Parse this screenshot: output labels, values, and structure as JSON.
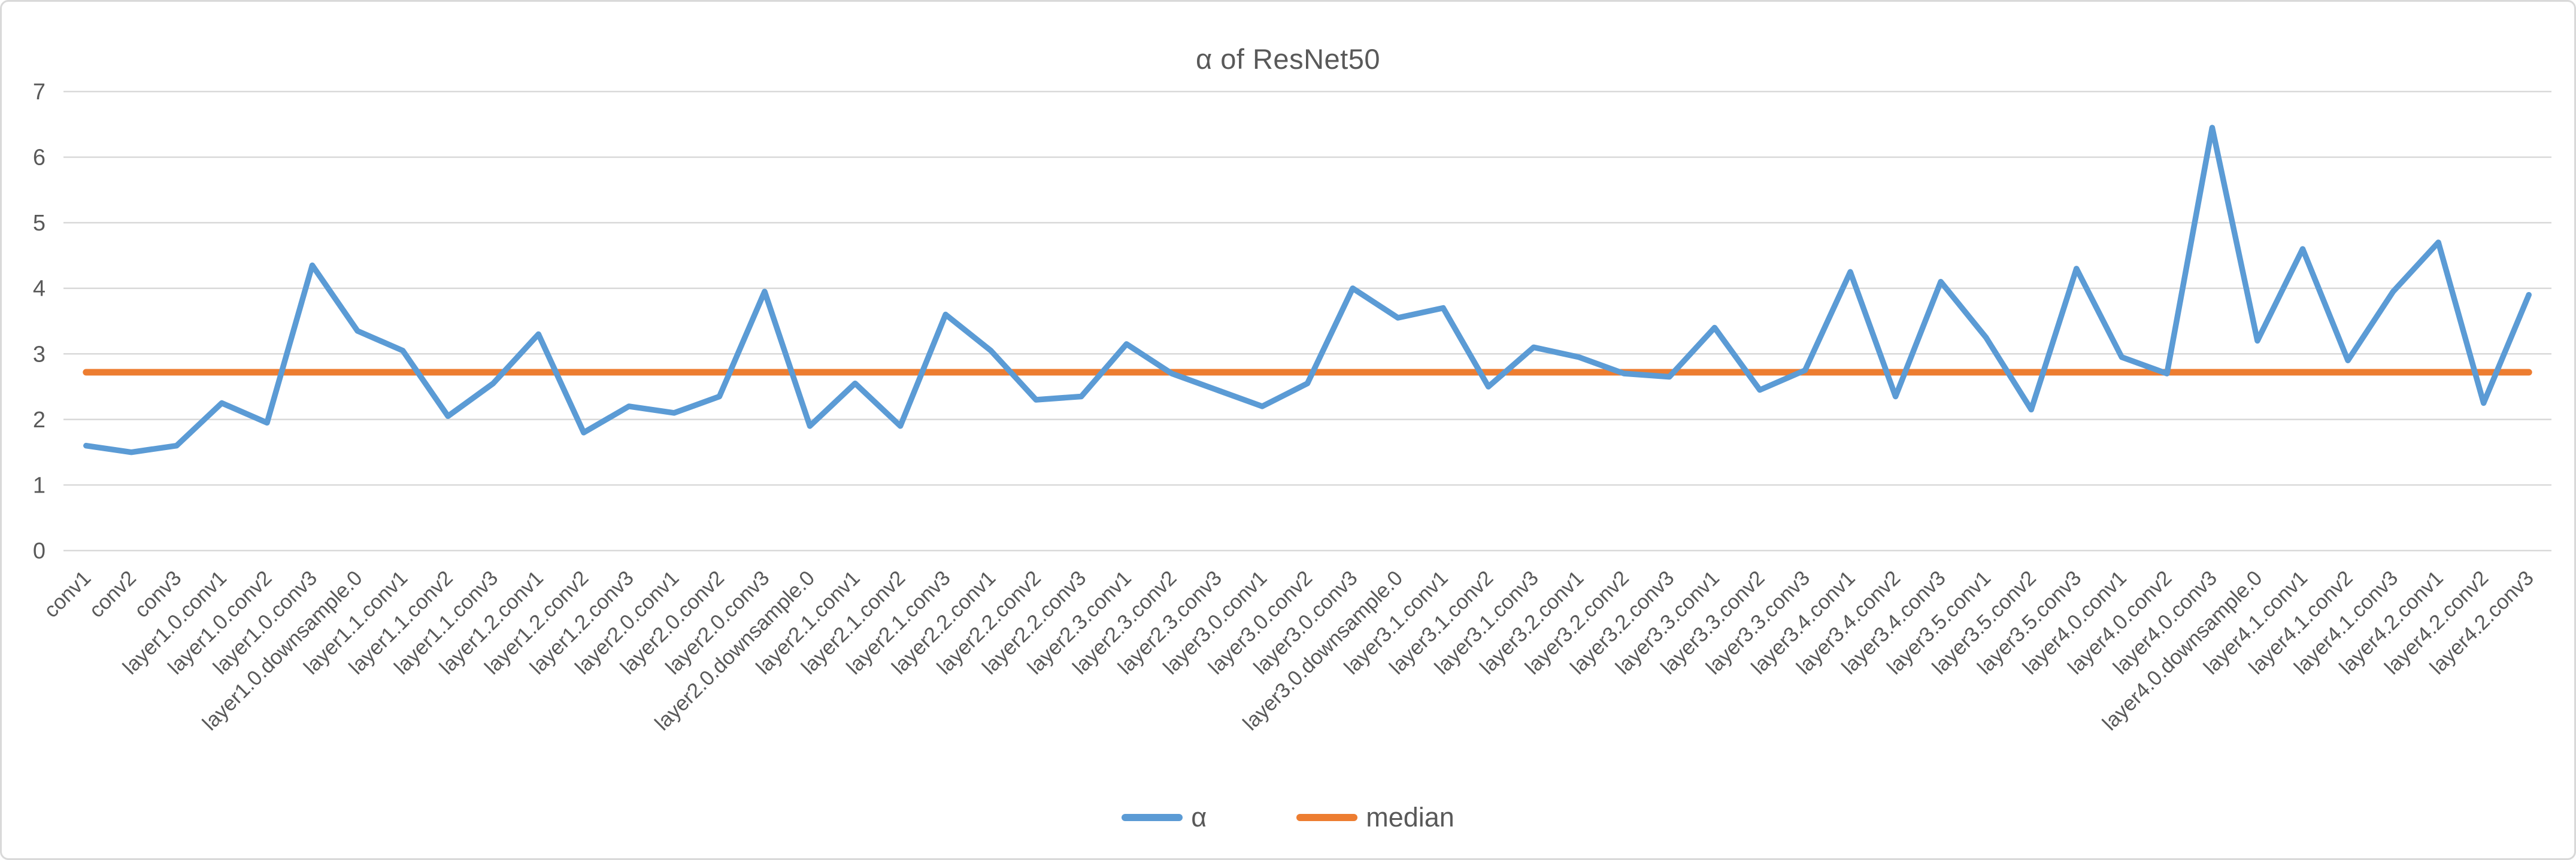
{
  "chart": {
    "colors": {
      "alpha_series": "#5B9BD5",
      "median_series": "#ED7D31",
      "gridline": "#D9D9D9",
      "axis_text": "#595959",
      "title_text": "#595959",
      "frame_border": "#D9D9D9"
    }
  },
  "chart_data": {
    "type": "line",
    "title": "α of ResNet50",
    "xlabel": "",
    "ylabel": "",
    "ylim": [
      0,
      7
    ],
    "yticks": [
      0,
      1,
      2,
      3,
      4,
      5,
      6,
      7
    ],
    "grid": true,
    "legend_position": "bottom",
    "x_tick_rotation": 45,
    "categories": [
      "conv1",
      "conv2",
      "conv3",
      "layer1.0.conv1",
      "layer1.0.conv2",
      "layer1.0.conv3",
      "layer1.0.downsample.0",
      "layer1.1.conv1",
      "layer1.1.conv2",
      "layer1.1.conv3",
      "layer1.2.conv1",
      "layer1.2.conv2",
      "layer1.2.conv3",
      "layer2.0.conv1",
      "layer2.0.conv2",
      "layer2.0.conv3",
      "layer2.0.downsample.0",
      "layer2.1.conv1",
      "layer2.1.conv2",
      "layer2.1.conv3",
      "layer2.2.conv1",
      "layer2.2.conv2",
      "layer2.2.conv3",
      "layer2.3.conv1",
      "layer2.3.conv2",
      "layer2.3.conv3",
      "layer3.0.conv1",
      "layer3.0.conv2",
      "layer3.0.conv3",
      "layer3.0.downsample.0",
      "layer3.1.conv1",
      "layer3.1.conv2",
      "layer3.1.conv3",
      "layer3.2.conv1",
      "layer3.2.conv2",
      "layer3.2.conv3",
      "layer3.3.conv1",
      "layer3.3.conv2",
      "layer3.3.conv3",
      "layer3.4.conv1",
      "layer3.4.conv2",
      "layer3.4.conv3",
      "layer3.5.conv1",
      "layer3.5.conv2",
      "layer3.5.conv3",
      "layer4.0.conv1",
      "layer4.0.conv2",
      "layer4.0.conv3",
      "layer4.0.downsample.0",
      "layer4.1.conv1",
      "layer4.1.conv2",
      "layer4.1.conv3",
      "layer4.2.conv1",
      "layer4.2.conv2",
      "layer4.2.conv3"
    ],
    "series": [
      {
        "name": "α",
        "values": [
          1.6,
          1.5,
          1.6,
          2.25,
          1.95,
          4.35,
          3.35,
          3.05,
          2.05,
          2.55,
          3.3,
          1.8,
          2.2,
          2.1,
          2.35,
          3.95,
          1.9,
          2.55,
          1.9,
          3.6,
          3.05,
          2.3,
          2.35,
          3.15,
          2.7,
          2.45,
          2.2,
          2.55,
          4.0,
          3.55,
          3.7,
          2.5,
          3.1,
          2.95,
          2.7,
          2.65,
          3.4,
          2.45,
          2.75,
          4.25,
          2.35,
          4.1,
          3.25,
          2.15,
          4.3,
          2.95,
          2.7,
          6.45,
          3.2,
          4.6,
          2.9,
          3.95,
          4.7,
          2.25,
          3.9
        ]
      },
      {
        "name": "median",
        "constant": 2.72
      }
    ]
  }
}
